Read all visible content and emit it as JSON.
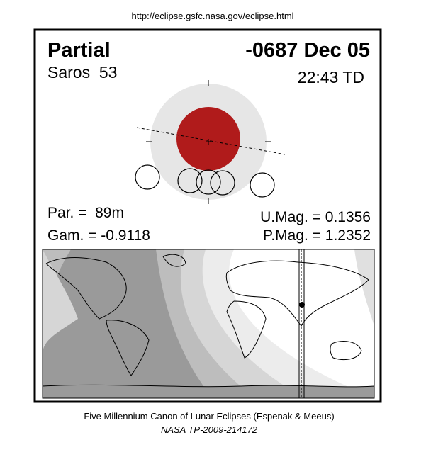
{
  "header": {
    "url": "http://eclipse.gsfc.nasa.gov/eclipse.html"
  },
  "eclipse": {
    "type": "Partial",
    "date": "-0687 Dec 05",
    "saros": "Saros  53",
    "time": "22:43 TD",
    "duration": "Par. =  89m",
    "gamma": "Gam. = -0.9118",
    "umbral_magnitude": "U.Mag. = 0.1356",
    "penumbral_magnitude": "P.Mag. = 1.2352"
  },
  "footer": {
    "title": "Five Millennium Canon of Lunar Eclipses (Espenak & Meeus)",
    "reference": "NASA TP-2009-214172"
  }
}
